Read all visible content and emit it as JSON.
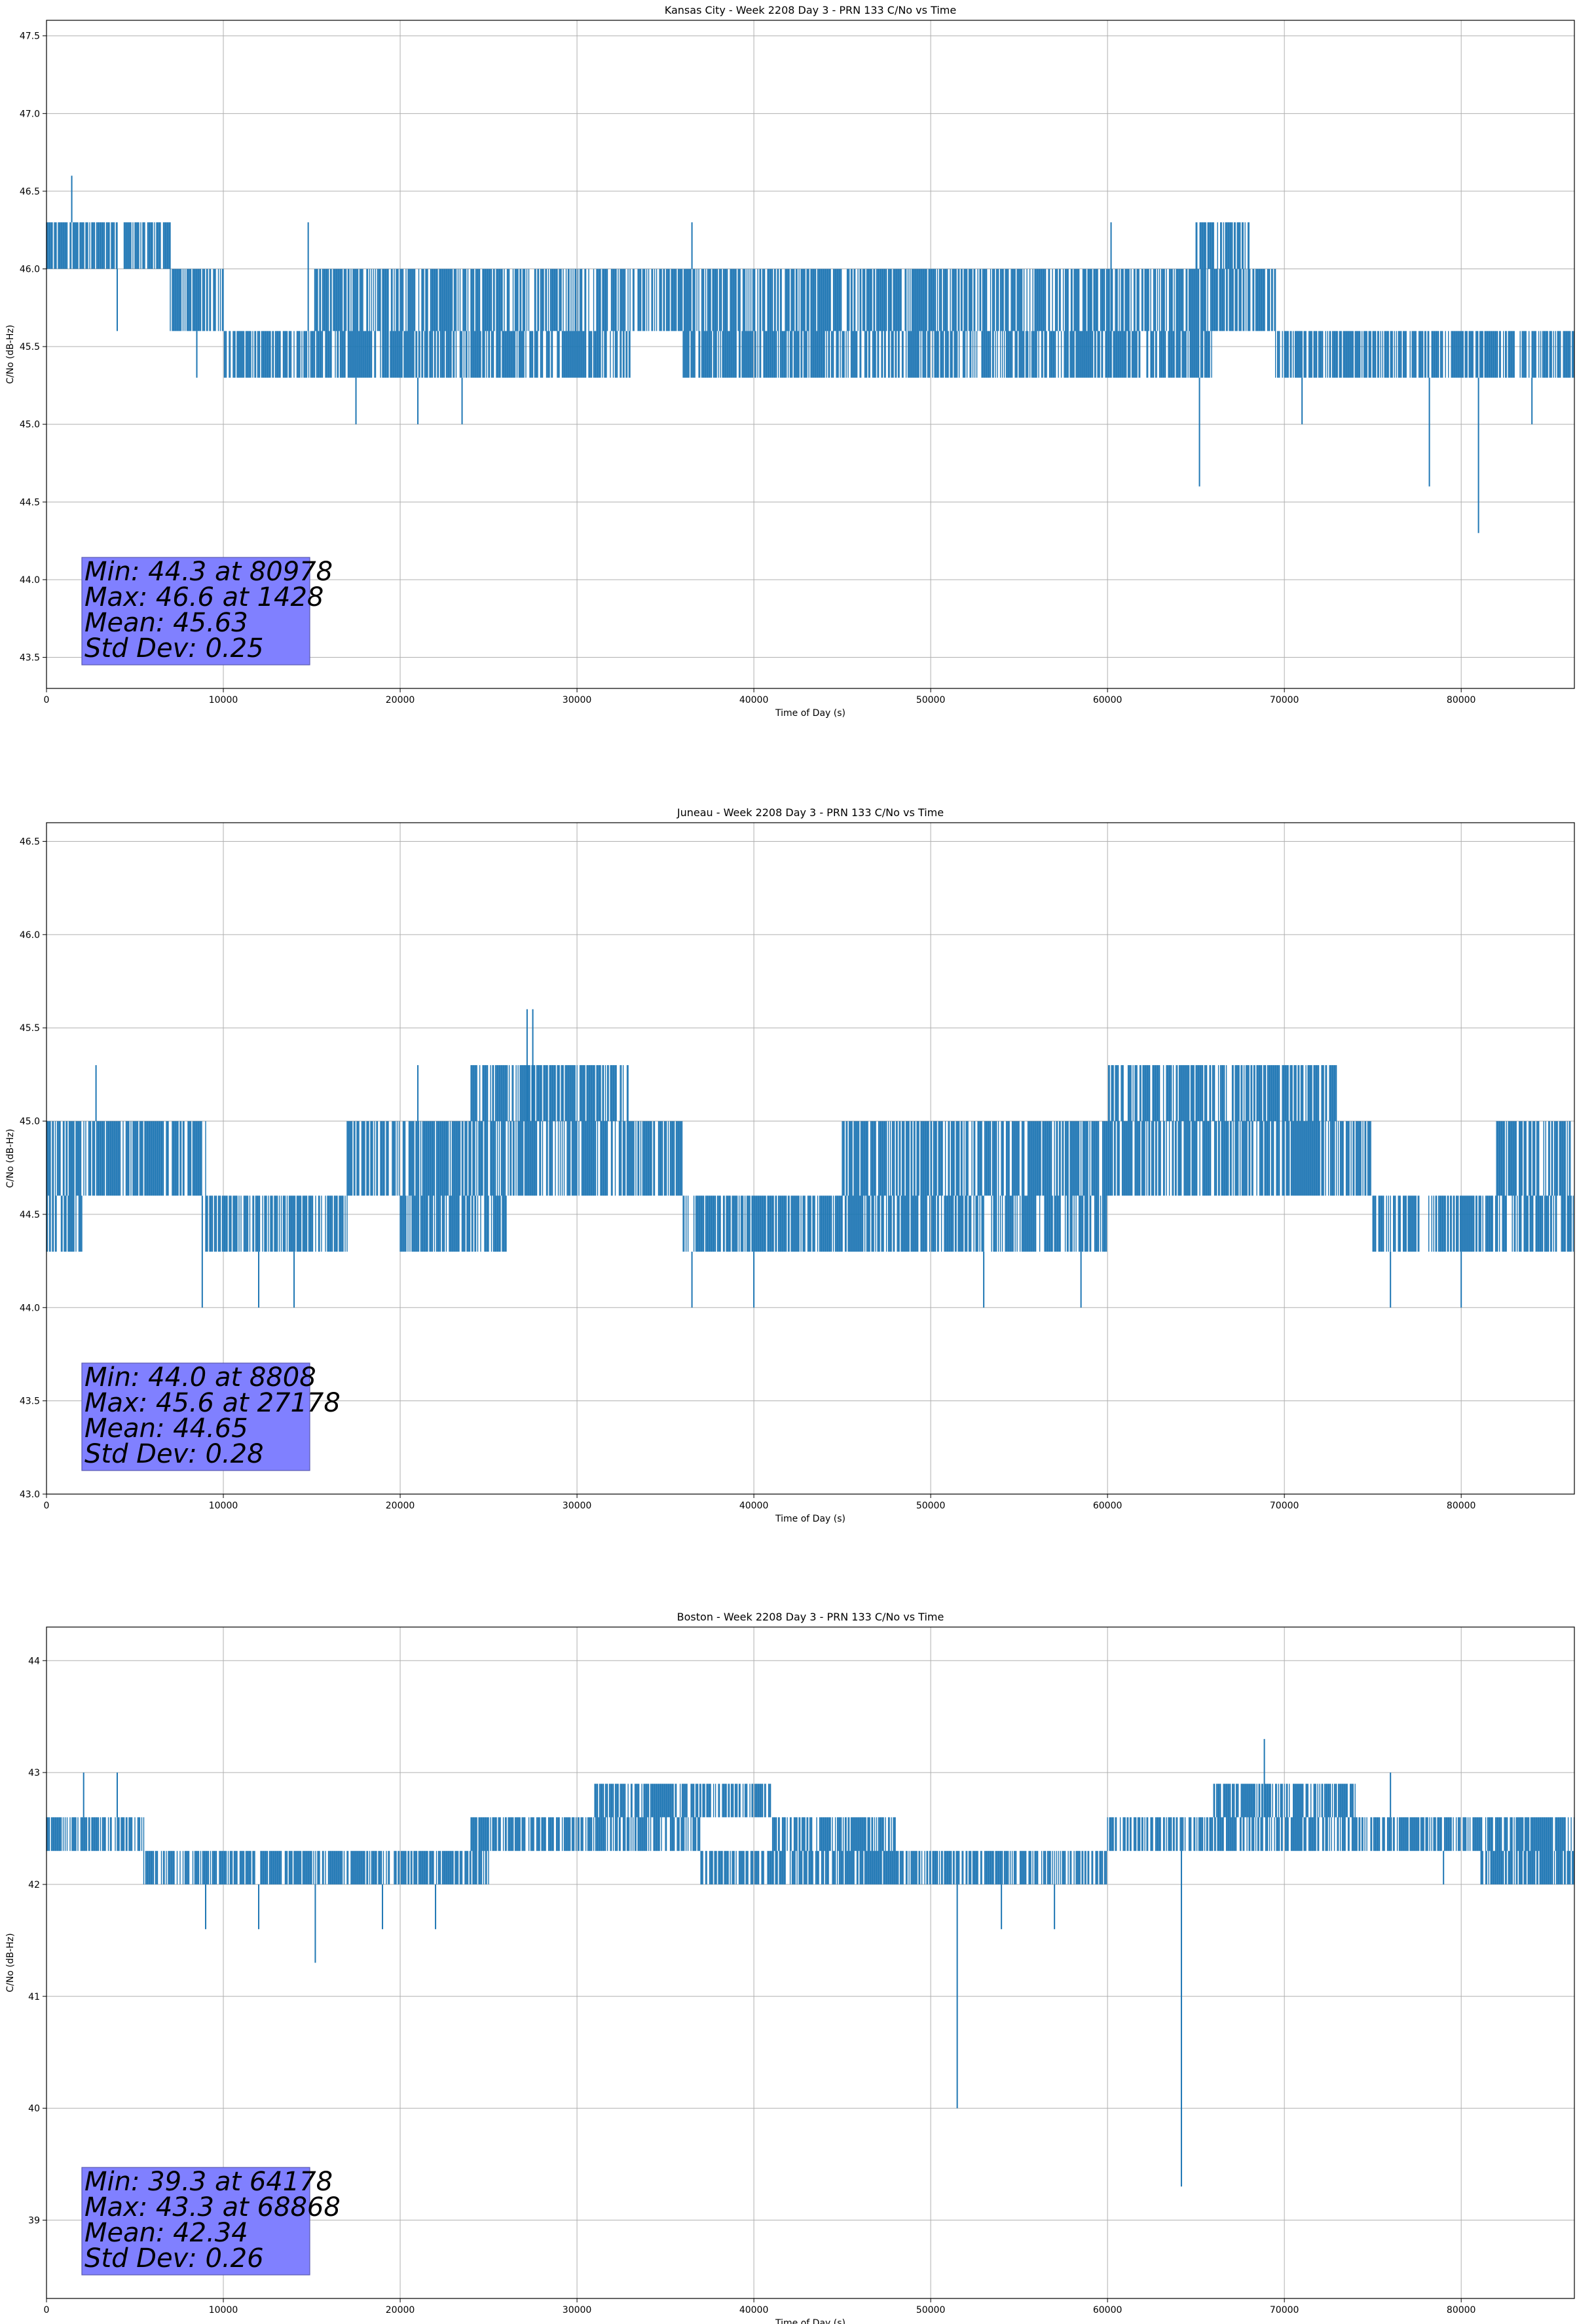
{
  "chart_data": [
    {
      "type": "line",
      "title": "Kansas City - Week 2208 Day 3 - PRN 133 C/No vs Time",
      "xlabel": "Time of Day (s)",
      "ylabel": "C/No (dB-Hz)",
      "xlim": [
        0,
        86400
      ],
      "ylim": [
        43.3,
        47.6
      ],
      "xticks": [
        0,
        10000,
        20000,
        30000,
        40000,
        50000,
        60000,
        70000,
        80000
      ],
      "xtick_labels": [
        "0",
        "10000",
        "20000",
        "30000",
        "40000",
        "50000",
        "60000",
        "70000",
        "80000"
      ],
      "yticks": [
        43.5,
        44.0,
        44.5,
        45.0,
        45.5,
        46.0,
        46.5,
        47.0,
        47.5
      ],
      "ytick_labels": [
        "43.5",
        "44.0",
        "44.5",
        "45.0",
        "45.5",
        "46.0",
        "46.5",
        "47.0",
        "47.5"
      ],
      "grid": true,
      "series_color": "#1f77b4",
      "bands": [
        {
          "x": [
            0,
            7000
          ],
          "y": [
            46.0,
            46.3
          ]
        },
        {
          "x": [
            7000,
            10000
          ],
          "y": [
            45.6,
            46.0
          ]
        },
        {
          "x": [
            10000,
            33000
          ],
          "y": [
            45.3,
            45.6
          ]
        },
        {
          "x": [
            15000,
            33000
          ],
          "y": [
            45.6,
            46.0
          ]
        },
        {
          "x": [
            33000,
            50000
          ],
          "y": [
            45.6,
            46.0
          ]
        },
        {
          "x": [
            36000,
            66000
          ],
          "y": [
            45.3,
            45.6
          ]
        },
        {
          "x": [
            49000,
            69500
          ],
          "y": [
            45.6,
            46.0
          ]
        },
        {
          "x": [
            65000,
            68000
          ],
          "y": [
            46.0,
            46.3
          ]
        },
        {
          "x": [
            69500,
            86400
          ],
          "y": [
            45.3,
            45.6
          ]
        }
      ],
      "spikes": [
        {
          "x": 1428,
          "y": 46.6
        },
        {
          "x": 4000,
          "y": 45.6
        },
        {
          "x": 8500,
          "y": 45.3
        },
        {
          "x": 14800,
          "y": 46.3
        },
        {
          "x": 17500,
          "y": 45.0
        },
        {
          "x": 21000,
          "y": 45.0
        },
        {
          "x": 23500,
          "y": 45.0
        },
        {
          "x": 36500,
          "y": 46.3
        },
        {
          "x": 60200,
          "y": 46.3
        },
        {
          "x": 65200,
          "y": 44.6
        },
        {
          "x": 71000,
          "y": 45.0
        },
        {
          "x": 78200,
          "y": 44.6
        },
        {
          "x": 80978,
          "y": 44.3
        },
        {
          "x": 84000,
          "y": 45.0
        }
      ],
      "stats": [
        "Min: 44.3 at 80978",
        "Max: 46.6 at 1428",
        "Mean: 45.63",
        "Std Dev: 0.25"
      ]
    },
    {
      "type": "line",
      "title": "Juneau - Week 2208 Day 3 - PRN 133 C/No vs Time",
      "xlabel": "Time of Day (s)",
      "ylabel": "C/No (dB-Hz)",
      "xlim": [
        0,
        86400
      ],
      "ylim": [
        43.0,
        46.6
      ],
      "xticks": [
        0,
        10000,
        20000,
        30000,
        40000,
        50000,
        60000,
        70000,
        80000
      ],
      "xtick_labels": [
        "0",
        "10000",
        "20000",
        "30000",
        "40000",
        "50000",
        "60000",
        "70000",
        "80000"
      ],
      "yticks": [
        43.0,
        43.5,
        44.0,
        44.5,
        45.0,
        45.5,
        46.0,
        46.5
      ],
      "ytick_labels": [
        "43.0",
        "43.5",
        "44.0",
        "44.5",
        "45.0",
        "45.5",
        "46.0",
        "46.5"
      ],
      "grid": true,
      "series_color": "#1f77b4",
      "bands": [
        {
          "x": [
            0,
            9000
          ],
          "y": [
            44.6,
            45.0
          ]
        },
        {
          "x": [
            0,
            2000
          ],
          "y": [
            44.3,
            44.6
          ]
        },
        {
          "x": [
            9000,
            17000
          ],
          "y": [
            44.3,
            44.6
          ]
        },
        {
          "x": [
            17000,
            36000
          ],
          "y": [
            44.6,
            45.0
          ]
        },
        {
          "x": [
            24000,
            33000
          ],
          "y": [
            45.0,
            45.3
          ]
        },
        {
          "x": [
            20000,
            26000
          ],
          "y": [
            44.3,
            44.6
          ]
        },
        {
          "x": [
            36000,
            60000
          ],
          "y": [
            44.3,
            44.6
          ]
        },
        {
          "x": [
            45000,
            60000
          ],
          "y": [
            44.6,
            45.0
          ]
        },
        {
          "x": [
            60000,
            75000
          ],
          "y": [
            44.6,
            45.0
          ]
        },
        {
          "x": [
            60000,
            73000
          ],
          "y": [
            45.0,
            45.3
          ]
        },
        {
          "x": [
            75000,
            86400
          ],
          "y": [
            44.3,
            44.6
          ]
        },
        {
          "x": [
            82000,
            86400
          ],
          "y": [
            44.6,
            45.0
          ]
        }
      ],
      "spikes": [
        {
          "x": 2800,
          "y": 45.3
        },
        {
          "x": 8808,
          "y": 44.0
        },
        {
          "x": 12000,
          "y": 44.0
        },
        {
          "x": 14000,
          "y": 44.0
        },
        {
          "x": 21000,
          "y": 45.3
        },
        {
          "x": 27178,
          "y": 45.6
        },
        {
          "x": 27500,
          "y": 45.6
        },
        {
          "x": 36500,
          "y": 44.0
        },
        {
          "x": 40000,
          "y": 44.0
        },
        {
          "x": 53000,
          "y": 44.0
        },
        {
          "x": 58500,
          "y": 44.0
        },
        {
          "x": 76000,
          "y": 44.0
        },
        {
          "x": 80000,
          "y": 44.0
        }
      ],
      "stats": [
        "Min: 44.0 at 8808",
        "Max: 45.6 at 27178",
        "Mean: 44.65",
        "Std Dev: 0.28"
      ]
    },
    {
      "type": "line",
      "title": "Boston - Week 2208 Day 3 - PRN 133 C/No vs Time",
      "xlabel": "Time of Day (s)",
      "ylabel": "C/No (dB-Hz)",
      "xlim": [
        0,
        86400
      ],
      "ylim": [
        38.3,
        44.3
      ],
      "xticks": [
        0,
        10000,
        20000,
        30000,
        40000,
        50000,
        60000,
        70000,
        80000
      ],
      "xtick_labels": [
        "0",
        "10000",
        "20000",
        "30000",
        "40000",
        "50000",
        "60000",
        "70000",
        "80000"
      ],
      "yticks": [
        39,
        40,
        41,
        42,
        43,
        44
      ],
      "ytick_labels": [
        "39",
        "40",
        "41",
        "42",
        "43",
        "44"
      ],
      "grid": true,
      "series_color": "#1f77b4",
      "bands": [
        {
          "x": [
            0,
            5500
          ],
          "y": [
            42.3,
            42.6
          ]
        },
        {
          "x": [
            5500,
            25000
          ],
          "y": [
            42.0,
            42.3
          ]
        },
        {
          "x": [
            24000,
            37000
          ],
          "y": [
            42.3,
            42.6
          ]
        },
        {
          "x": [
            31000,
            41000
          ],
          "y": [
            42.6,
            42.9
          ]
        },
        {
          "x": [
            37000,
            60000
          ],
          "y": [
            42.0,
            42.3
          ]
        },
        {
          "x": [
            41000,
            48000
          ],
          "y": [
            42.3,
            42.6
          ]
        },
        {
          "x": [
            60000,
            86400
          ],
          "y": [
            42.3,
            42.6
          ]
        },
        {
          "x": [
            66000,
            74000
          ],
          "y": [
            42.6,
            42.9
          ]
        },
        {
          "x": [
            81000,
            86400
          ],
          "y": [
            42.0,
            42.3
          ]
        }
      ],
      "spikes": [
        {
          "x": 2100,
          "y": 43.0
        },
        {
          "x": 4000,
          "y": 43.0
        },
        {
          "x": 9000,
          "y": 41.6
        },
        {
          "x": 12000,
          "y": 41.6
        },
        {
          "x": 15200,
          "y": 41.3
        },
        {
          "x": 19000,
          "y": 41.6
        },
        {
          "x": 22000,
          "y": 41.6
        },
        {
          "x": 51500,
          "y": 40.0
        },
        {
          "x": 54000,
          "y": 41.6
        },
        {
          "x": 57000,
          "y": 41.6
        },
        {
          "x": 64178,
          "y": 39.3
        },
        {
          "x": 68868,
          "y": 43.3
        },
        {
          "x": 76000,
          "y": 43.0
        },
        {
          "x": 79000,
          "y": 42.0
        }
      ],
      "stats": [
        "Min: 39.3 at 64178",
        "Max: 43.3 at 68868",
        "Mean: 42.34",
        "Std Dev: 0.26"
      ]
    }
  ]
}
